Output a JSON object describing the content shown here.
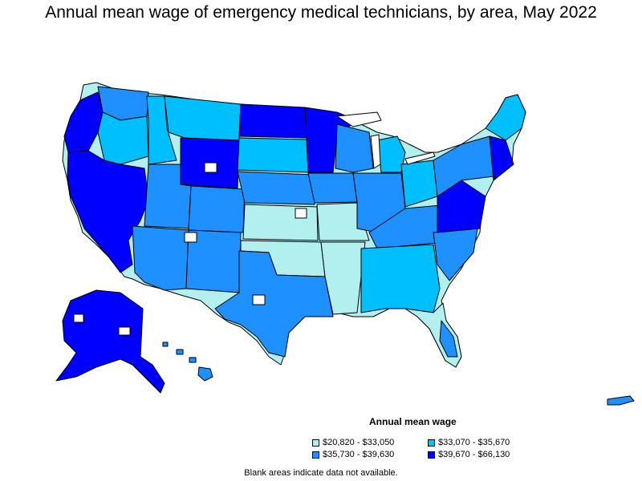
{
  "title": "Annual mean wage of emergency medical technicians, by area, May 2022",
  "legend": {
    "title": "Annual mean wage",
    "items": [
      {
        "label": "$20,820 - $33,050",
        "color": "#b2f0f0"
      },
      {
        "label": "$33,070 - $35,670",
        "color": "#00bfff"
      },
      {
        "label": "$35,730 - $39,630",
        "color": "#1e90ff"
      },
      {
        "label": "$39,670 - $66,130",
        "color": "#0000ff"
      }
    ]
  },
  "footnote": "Blank areas indicate data not available."
}
